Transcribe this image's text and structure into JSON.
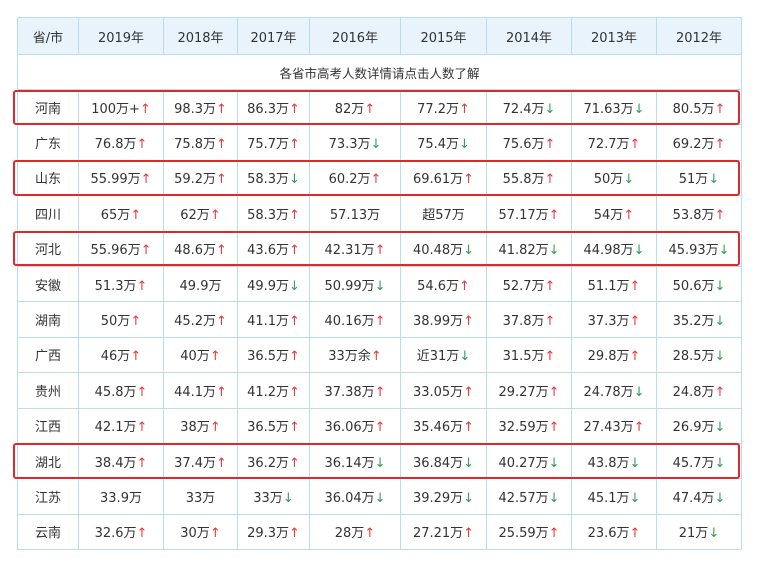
{
  "header": {
    "province": "省/市",
    "years": [
      "2019年",
      "2018年",
      "2017年",
      "2016年",
      "2015年",
      "2014年",
      "2013年",
      "2012年"
    ]
  },
  "note": "各省市高考人数详情请点击人数了解",
  "rows": [
    {
      "name": "河南",
      "highlight": true,
      "cells": [
        {
          "v": "100万+",
          "t": "up"
        },
        {
          "v": "98.3万",
          "t": "up"
        },
        {
          "v": "86.3万",
          "t": "up"
        },
        {
          "v": "82万",
          "t": "up"
        },
        {
          "v": "77.2万",
          "t": "up"
        },
        {
          "v": "72.4万",
          "t": "down"
        },
        {
          "v": "71.63万",
          "t": "down"
        },
        {
          "v": "80.5万",
          "t": "up"
        }
      ]
    },
    {
      "name": "广东",
      "highlight": false,
      "cells": [
        {
          "v": "76.8万",
          "t": "up"
        },
        {
          "v": "75.8万",
          "t": "up"
        },
        {
          "v": "75.7万",
          "t": "up"
        },
        {
          "v": "73.3万",
          "t": "down"
        },
        {
          "v": "75.4万",
          "t": "down"
        },
        {
          "v": "75.6万",
          "t": "up"
        },
        {
          "v": "72.7万",
          "t": "up"
        },
        {
          "v": "69.2万",
          "t": "up"
        }
      ]
    },
    {
      "name": "山东",
      "highlight": true,
      "cells": [
        {
          "v": "55.99万",
          "t": "up"
        },
        {
          "v": "59.2万",
          "t": "up"
        },
        {
          "v": "58.3万",
          "t": "down"
        },
        {
          "v": "60.2万",
          "t": "up"
        },
        {
          "v": "69.61万",
          "t": "up"
        },
        {
          "v": "55.8万",
          "t": "up"
        },
        {
          "v": "50万",
          "t": "down"
        },
        {
          "v": "51万",
          "t": "down"
        }
      ]
    },
    {
      "name": "四川",
      "highlight": false,
      "cells": [
        {
          "v": "65万",
          "t": "up"
        },
        {
          "v": "62万",
          "t": "up"
        },
        {
          "v": "58.3万",
          "t": "up"
        },
        {
          "v": "57.13万",
          "t": ""
        },
        {
          "v": "超57万",
          "t": ""
        },
        {
          "v": "57.17万",
          "t": "up"
        },
        {
          "v": "54万",
          "t": "up"
        },
        {
          "v": "53.8万",
          "t": "up"
        }
      ]
    },
    {
      "name": "河北",
      "highlight": true,
      "cells": [
        {
          "v": "55.96万",
          "t": "up"
        },
        {
          "v": "48.6万",
          "t": "up"
        },
        {
          "v": "43.6万",
          "t": "up"
        },
        {
          "v": "42.31万",
          "t": "up"
        },
        {
          "v": "40.48万",
          "t": "down"
        },
        {
          "v": "41.82万",
          "t": "down"
        },
        {
          "v": "44.98万",
          "t": "down"
        },
        {
          "v": "45.93万",
          "t": "down"
        }
      ]
    },
    {
      "name": "安徽",
      "highlight": false,
      "cells": [
        {
          "v": "51.3万",
          "t": "up"
        },
        {
          "v": "49.9万",
          "t": ""
        },
        {
          "v": "49.9万",
          "t": "down"
        },
        {
          "v": "50.99万",
          "t": "down"
        },
        {
          "v": "54.6万",
          "t": "up"
        },
        {
          "v": "52.7万",
          "t": "up"
        },
        {
          "v": "51.1万",
          "t": "up"
        },
        {
          "v": "50.6万",
          "t": "down"
        }
      ]
    },
    {
      "name": "湖南",
      "highlight": false,
      "cells": [
        {
          "v": "50万",
          "t": "up"
        },
        {
          "v": "45.2万",
          "t": "up"
        },
        {
          "v": "41.1万",
          "t": "up"
        },
        {
          "v": "40.16万",
          "t": "up"
        },
        {
          "v": "38.99万",
          "t": "up"
        },
        {
          "v": "37.8万",
          "t": "up"
        },
        {
          "v": "37.3万",
          "t": "up"
        },
        {
          "v": "35.2万",
          "t": "down"
        }
      ]
    },
    {
      "name": "广西",
      "highlight": false,
      "cells": [
        {
          "v": "46万",
          "t": "up"
        },
        {
          "v": "40万",
          "t": "up"
        },
        {
          "v": "36.5万",
          "t": "up"
        },
        {
          "v": "33万余",
          "t": "up"
        },
        {
          "v": "近31万",
          "t": "down"
        },
        {
          "v": "31.5万",
          "t": "up"
        },
        {
          "v": "29.8万",
          "t": "up"
        },
        {
          "v": "28.5万",
          "t": "down"
        }
      ]
    },
    {
      "name": "贵州",
      "highlight": false,
      "cells": [
        {
          "v": "45.8万",
          "t": "up"
        },
        {
          "v": "44.1万",
          "t": "up"
        },
        {
          "v": "41.2万",
          "t": "up"
        },
        {
          "v": "37.38万",
          "t": "up"
        },
        {
          "v": "33.05万",
          "t": "up"
        },
        {
          "v": "29.27万",
          "t": "up"
        },
        {
          "v": "24.78万",
          "t": "down"
        },
        {
          "v": "24.8万",
          "t": "up"
        }
      ]
    },
    {
      "name": "江西",
      "highlight": false,
      "cells": [
        {
          "v": "42.1万",
          "t": "up"
        },
        {
          "v": "38万",
          "t": "up"
        },
        {
          "v": "36.5万",
          "t": "up"
        },
        {
          "v": "36.06万",
          "t": "up"
        },
        {
          "v": "35.46万",
          "t": "up"
        },
        {
          "v": "32.59万",
          "t": "up"
        },
        {
          "v": "27.43万",
          "t": "up"
        },
        {
          "v": "26.9万",
          "t": "down"
        }
      ]
    },
    {
      "name": "湖北",
      "highlight": true,
      "cells": [
        {
          "v": "38.4万",
          "t": "up"
        },
        {
          "v": "37.4万",
          "t": "up"
        },
        {
          "v": "36.2万",
          "t": "up"
        },
        {
          "v": "36.14万",
          "t": "down"
        },
        {
          "v": "36.84万",
          "t": "down"
        },
        {
          "v": "40.27万",
          "t": "down"
        },
        {
          "v": "43.8万",
          "t": "down"
        },
        {
          "v": "45.7万",
          "t": "down"
        }
      ]
    },
    {
      "name": "江苏",
      "highlight": false,
      "cells": [
        {
          "v": "33.9万",
          "t": ""
        },
        {
          "v": "33万",
          "t": ""
        },
        {
          "v": "33万",
          "t": "down"
        },
        {
          "v": "36.04万",
          "t": "down"
        },
        {
          "v": "39.29万",
          "t": "down"
        },
        {
          "v": "42.57万",
          "t": "down"
        },
        {
          "v": "45.1万",
          "t": "down"
        },
        {
          "v": "47.4万",
          "t": "down"
        }
      ]
    },
    {
      "name": "云南",
      "highlight": false,
      "cells": [
        {
          "v": "32.6万",
          "t": "up"
        },
        {
          "v": "30万",
          "t": "up"
        },
        {
          "v": "29.3万",
          "t": "up"
        },
        {
          "v": "28万",
          "t": "up"
        },
        {
          "v": "27.21万",
          "t": "up"
        },
        {
          "v": "25.59万",
          "t": "up"
        },
        {
          "v": "23.6万",
          "t": "up"
        },
        {
          "v": "21万",
          "t": "down"
        }
      ]
    }
  ],
  "arrows": {
    "up": "↑",
    "down": "↓"
  },
  "colors": {
    "up": "#e4393c",
    "down": "#2e9e4f",
    "highlight": "#e0272b",
    "header_bg": "#e8f3fb",
    "border": "#b9dcef"
  }
}
